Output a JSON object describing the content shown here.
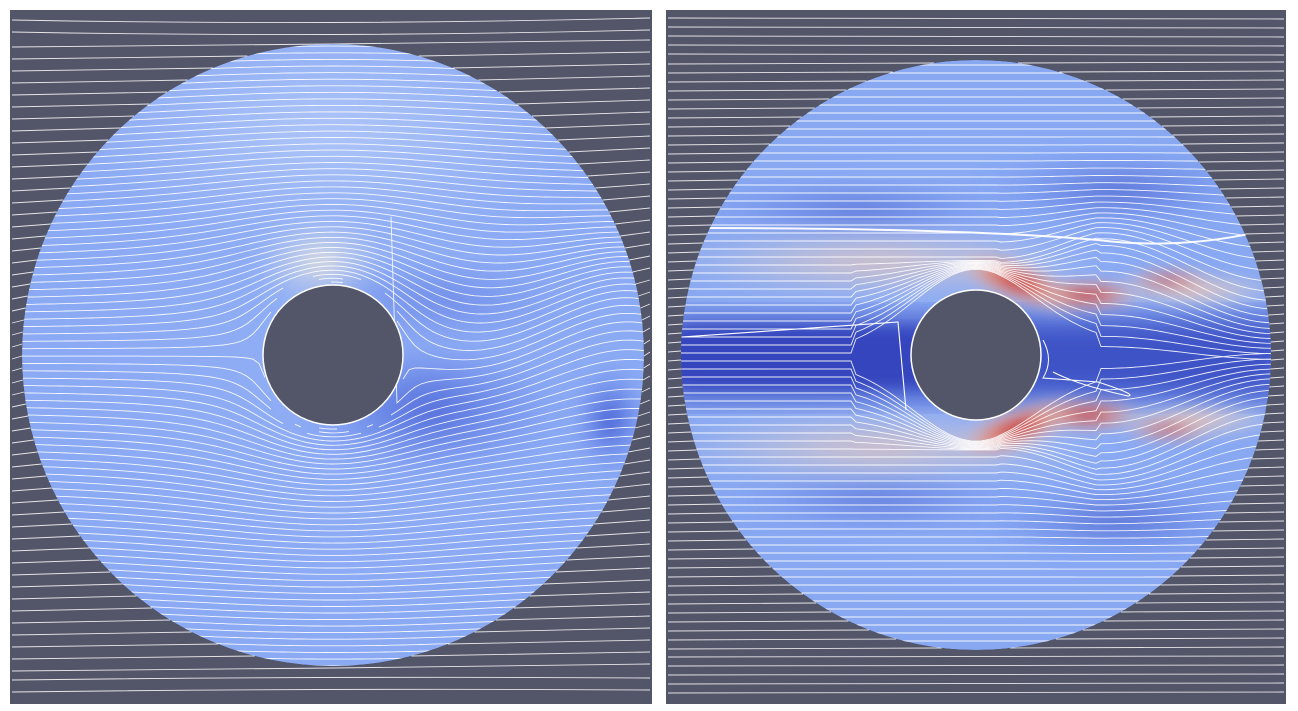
{
  "figure": {
    "panels": [
      {
        "id": "left",
        "description_free": true,
        "colormap": "coolwarm",
        "background_color": "#535568",
        "streamline_color": "#ffffff"
      },
      {
        "id": "right",
        "description_free": true,
        "colormap": "coolwarm",
        "background_color": "#535568",
        "streamline_color": "#ffffff"
      }
    ],
    "colors": {
      "background": "#535568",
      "low": "#3a4cc0",
      "mid_low": "#7396f5",
      "neutral": "#dcdddd",
      "mid_high": "#f08a6c",
      "high": "#b40426",
      "separator": "#ffffff"
    }
  }
}
